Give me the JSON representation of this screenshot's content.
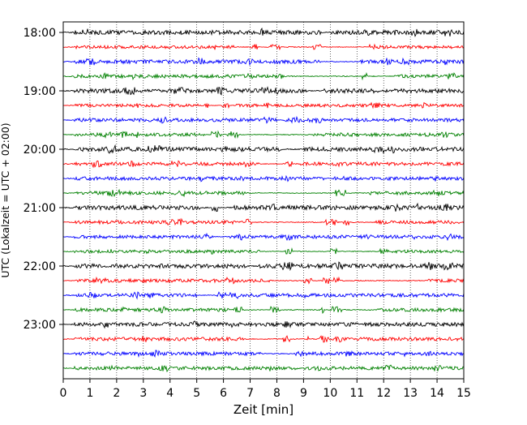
{
  "chart_data": {
    "type": "line",
    "title": "",
    "xlabel": "Zeit  [min]",
    "ylabel": "UTC (Lokalzeit = UTC + 02:00)",
    "xlim": [
      0,
      15
    ],
    "x_ticks": [
      0,
      1,
      2,
      3,
      4,
      5,
      6,
      7,
      8,
      9,
      10,
      11,
      12,
      13,
      14,
      15
    ],
    "y_tick_labels": [
      "18:00",
      "19:00",
      "20:00",
      "21:00",
      "22:00",
      "23:00"
    ],
    "grid": "vertical-dotted",
    "legend": "none",
    "trace_colors": [
      "#000000",
      "#ff0000",
      "#0000ff",
      "#008000"
    ],
    "traces": [
      {
        "start": "18:00",
        "color": "#000000",
        "amplitude": 1.0
      },
      {
        "start": "18:15",
        "color": "#ff0000",
        "amplitude": 0.7
      },
      {
        "start": "18:30",
        "color": "#0000ff",
        "amplitude": 0.9
      },
      {
        "start": "18:45",
        "color": "#008000",
        "amplitude": 0.8
      },
      {
        "start": "19:00",
        "color": "#000000",
        "amplitude": 1.0
      },
      {
        "start": "19:15",
        "color": "#ff0000",
        "amplitude": 0.7
      },
      {
        "start": "19:30",
        "color": "#0000ff",
        "amplitude": 0.8
      },
      {
        "start": "19:45",
        "color": "#008000",
        "amplitude": 0.8
      },
      {
        "start": "20:00",
        "color": "#000000",
        "amplitude": 1.0
      },
      {
        "start": "20:15",
        "color": "#ff0000",
        "amplitude": 0.8
      },
      {
        "start": "20:30",
        "color": "#0000ff",
        "amplitude": 0.8
      },
      {
        "start": "20:45",
        "color": "#008000",
        "amplitude": 0.8
      },
      {
        "start": "21:00",
        "color": "#000000",
        "amplitude": 1.0
      },
      {
        "start": "21:15",
        "color": "#ff0000",
        "amplitude": 0.8
      },
      {
        "start": "21:30",
        "color": "#0000ff",
        "amplitude": 0.8
      },
      {
        "start": "21:45",
        "color": "#008000",
        "amplitude": 0.7
      },
      {
        "start": "22:00",
        "color": "#000000",
        "amplitude": 1.0
      },
      {
        "start": "22:15",
        "color": "#ff0000",
        "amplitude": 0.8
      },
      {
        "start": "22:30",
        "color": "#0000ff",
        "amplitude": 0.8
      },
      {
        "start": "22:45",
        "color": "#008000",
        "amplitude": 0.8
      },
      {
        "start": "23:00",
        "color": "#000000",
        "amplitude": 0.9
      },
      {
        "start": "23:15",
        "color": "#ff0000",
        "amplitude": 0.8
      },
      {
        "start": "23:30",
        "color": "#0000ff",
        "amplitude": 0.8
      },
      {
        "start": "23:45",
        "color": "#008000",
        "amplitude": 0.8
      }
    ]
  }
}
